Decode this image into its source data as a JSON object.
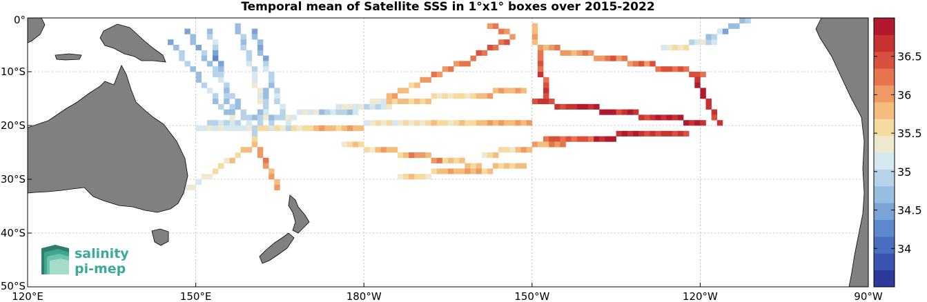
{
  "title": "Temporal mean of Satellite SSS in 1°x1° boxes over 2015-2022",
  "logo": {
    "line1": "salinity",
    "line2": "pi-mep"
  },
  "map": {
    "lon_range": [
      120,
      270
    ],
    "lat_range": [
      -50,
      0
    ],
    "lon_ticks": [
      {
        "value": 120,
        "label": "120°E"
      },
      {
        "value": 150,
        "label": "150°E"
      },
      {
        "value": 180,
        "label": "180°W"
      },
      {
        "value": 210,
        "label": "150°W"
      },
      {
        "value": 240,
        "label": "120°W"
      },
      {
        "value": 270,
        "label": "90°W"
      }
    ],
    "lat_ticks": [
      {
        "value": 0,
        "label": "0°"
      },
      {
        "value": -10,
        "label": "10°S"
      },
      {
        "value": -20,
        "label": "20°S"
      },
      {
        "value": -30,
        "label": "30°S"
      },
      {
        "value": -40,
        "label": "40°S"
      },
      {
        "value": -50,
        "label": "50°S"
      }
    ],
    "grid": true,
    "land_color": "#808080"
  },
  "colorbar": {
    "range": [
      33.5,
      37
    ],
    "ticks": [
      {
        "value": 34,
        "label": "34"
      },
      {
        "value": 34.5,
        "label": "34.5"
      },
      {
        "value": 35,
        "label": "35"
      },
      {
        "value": 35.5,
        "label": "35.5"
      },
      {
        "value": 36,
        "label": "36"
      },
      {
        "value": 36.5,
        "label": "36.5"
      }
    ],
    "colors": [
      "#2d3a9a",
      "#3a55b0",
      "#4a6fc0",
      "#5e88cc",
      "#7aa3d6",
      "#97bde0",
      "#b7d3ea",
      "#d5e7ef",
      "#eee9cf",
      "#f6dba0",
      "#f4bd7d",
      "#ef9a63",
      "#e6744f",
      "#d9503f",
      "#c93232",
      "#b01a2c"
    ]
  },
  "chart_data": {
    "type": "heatmap",
    "title": "Temporal mean of Satellite SSS in 1°x1° boxes over 2015-2022",
    "x_axis": "longitude",
    "y_axis": "latitude",
    "xlim": [
      120,
      270
    ],
    "ylim": [
      -50,
      0
    ],
    "value_range": [
      33.5,
      37
    ],
    "segments": [
      {
        "from": [
          145,
          -4
        ],
        "to": [
          157,
          -20
        ],
        "values": [
          34.7,
          34.9,
          34.6,
          35.0,
          34.8,
          35.2
        ]
      },
      {
        "from": [
          148,
          -2
        ],
        "to": [
          160,
          -20
        ],
        "values": [
          34.6,
          34.8,
          35.1,
          34.7,
          35.0
        ]
      },
      {
        "from": [
          152,
          -2
        ],
        "to": [
          156,
          -18
        ],
        "values": [
          34.9,
          34.5,
          35.0,
          34.8
        ]
      },
      {
        "from": [
          157,
          -1
        ],
        "to": [
          163,
          -20
        ],
        "values": [
          34.8,
          35.0,
          35.3,
          35.1
        ]
      },
      {
        "from": [
          160,
          -2
        ],
        "to": [
          166,
          -20
        ],
        "values": [
          34.6,
          34.9,
          35.0
        ]
      },
      {
        "from": [
          152,
          -19
        ],
        "to": [
          184,
          -16
        ],
        "values": [
          35.0,
          34.8,
          35.2,
          34.9,
          35.1
        ]
      },
      {
        "from": [
          150,
          -20
        ],
        "to": [
          209,
          -19
        ],
        "values": [
          35.2,
          35.5,
          35.8,
          35.4,
          35.6,
          35.9
        ]
      },
      {
        "from": [
          175,
          -16
        ],
        "to": [
          208,
          -13
        ],
        "values": [
          35.3,
          35.7,
          35.5,
          35.9
        ]
      },
      {
        "from": [
          176,
          -23
        ],
        "to": [
          200,
          -27
        ],
        "values": [
          35.6,
          35.8,
          36.0,
          35.7
        ]
      },
      {
        "from": [
          186,
          -29
        ],
        "to": [
          208,
          -27
        ],
        "values": [
          35.6,
          35.9,
          35.7
        ]
      },
      {
        "from": [
          160,
          -22
        ],
        "to": [
          164,
          -31
        ],
        "values": [
          35.8,
          36.1,
          35.9
        ]
      },
      {
        "from": [
          160,
          -23
        ],
        "to": [
          147,
          -32
        ],
        "values": [
          35.7,
          35.5,
          35.3
        ]
      },
      {
        "from": [
          160,
          -22
        ],
        "to": [
          163,
          -10
        ],
        "values": [
          34.9,
          34.7
        ]
      },
      {
        "from": [
          183,
          -15
        ],
        "to": [
          205,
          -4
        ],
        "values": [
          35.8,
          36.1,
          36.3
        ]
      },
      {
        "from": [
          210,
          -1
        ],
        "to": [
          212,
          -14
        ],
        "values": [
          35.9,
          36.3,
          36.5
        ]
      },
      {
        "from": [
          212,
          -5
        ],
        "to": [
          240,
          -10
        ],
        "values": [
          36.0,
          36.2,
          36.4
        ]
      },
      {
        "from": [
          210,
          -15
        ],
        "to": [
          240,
          -19
        ],
        "values": [
          36.6,
          36.9,
          36.7,
          36.8
        ]
      },
      {
        "from": [
          238,
          -10
        ],
        "to": [
          243,
          -19
        ],
        "values": [
          36.7,
          36.9,
          36.6
        ]
      },
      {
        "from": [
          212,
          -22
        ],
        "to": [
          237,
          -21
        ],
        "values": [
          36.4,
          36.8,
          36.6
        ]
      },
      {
        "from": [
          201,
          -25
        ],
        "to": [
          218,
          -22
        ],
        "values": [
          35.6,
          35.9,
          36.1
        ]
      },
      {
        "from": [
          233,
          -5
        ],
        "to": [
          242,
          -4
        ],
        "values": [
          35.4,
          35.1
        ]
      },
      {
        "from": [
          241,
          -3
        ],
        "to": [
          248,
          0
        ],
        "values": [
          34.9,
          34.6,
          34.8
        ]
      },
      {
        "from": [
          202,
          -1
        ],
        "to": [
          206,
          -3
        ],
        "values": [
          36.2,
          36.0
        ]
      }
    ]
  }
}
